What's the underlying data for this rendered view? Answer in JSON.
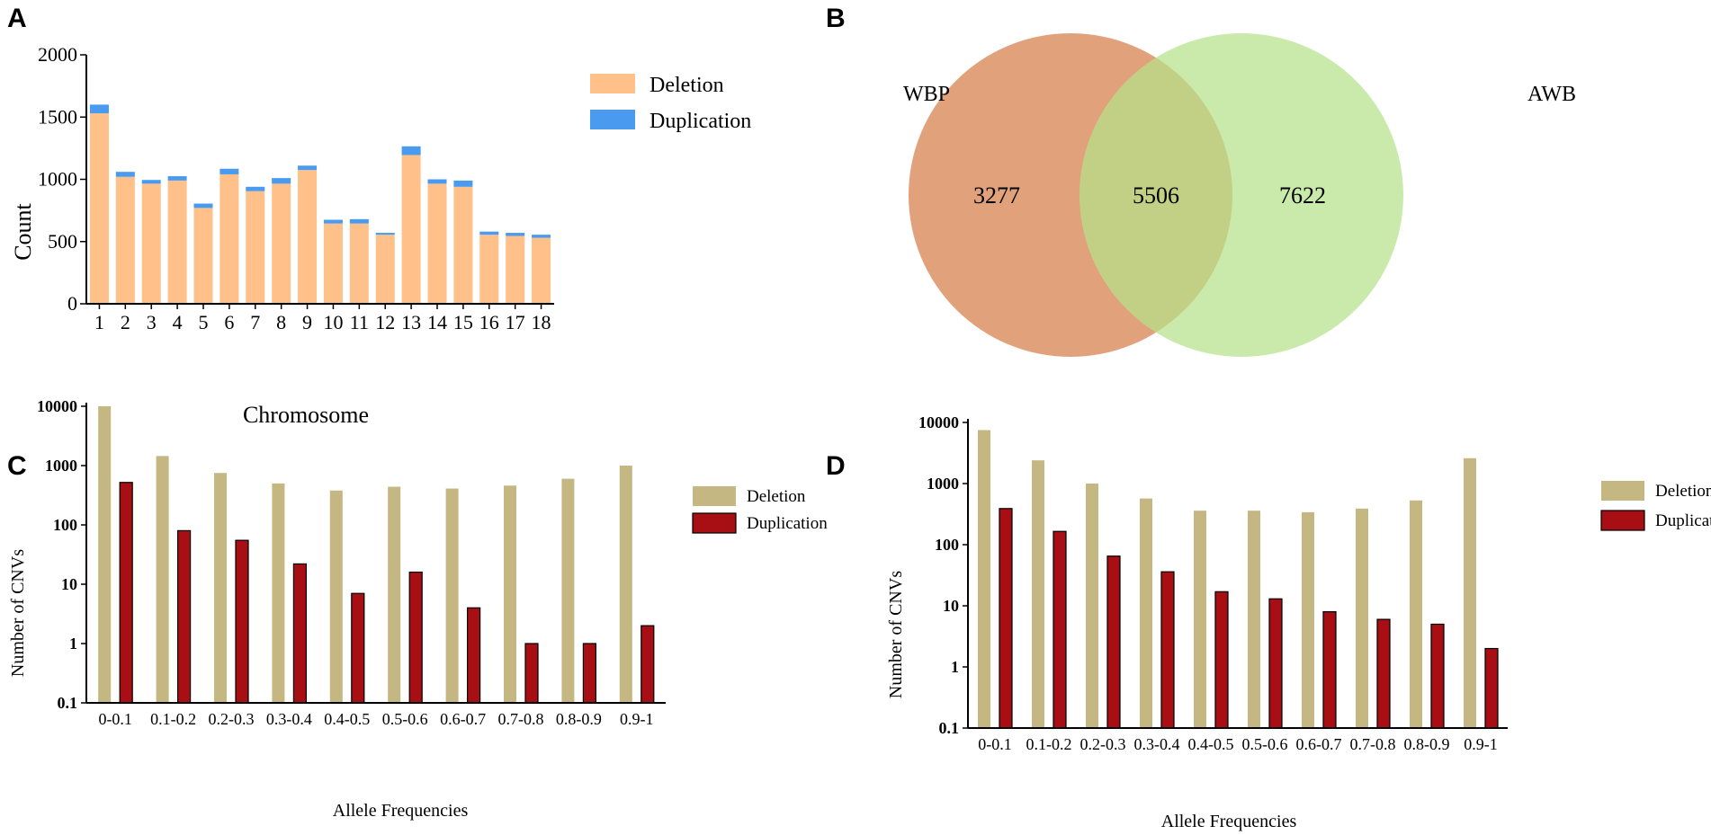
{
  "panels": {
    "a": "A",
    "b": "B",
    "c": "C",
    "d": "D"
  },
  "colors": {
    "deletion_a": "#FFC08A",
    "duplication_a": "#4A9AEF",
    "wbp": "#D9895A",
    "awb": "#B6E28A",
    "wbp_label": "#DDA07A",
    "awb_label": "#A8C68A",
    "deletion_cd": "#C4B782",
    "duplication_cd": "#A80F14"
  },
  "chart_data": [
    {
      "id": "A",
      "type": "bar",
      "stacked": true,
      "xlabel": "Chromosome",
      "ylabel": "Count",
      "ylim": [
        0,
        2000
      ],
      "yticks": [
        "0",
        "500",
        "1000",
        "1500",
        "2000"
      ],
      "categories": [
        "1",
        "2",
        "3",
        "4",
        "5",
        "6",
        "7",
        "8",
        "9",
        "10",
        "11",
        "12",
        "13",
        "14",
        "15",
        "16",
        "17",
        "18"
      ],
      "legend": [
        "Deletion",
        "Duplication"
      ],
      "legend_position": "top-right",
      "series": [
        {
          "name": "Deletion",
          "values": [
            1530,
            1020,
            965,
            990,
            770,
            1040,
            905,
            965,
            1075,
            645,
            645,
            555,
            1195,
            965,
            940,
            555,
            545,
            530
          ]
        },
        {
          "name": "Duplication",
          "values": [
            70,
            40,
            30,
            35,
            35,
            45,
            35,
            45,
            35,
            30,
            35,
            15,
            70,
            35,
            50,
            25,
            25,
            25
          ]
        }
      ]
    },
    {
      "id": "B",
      "type": "venn",
      "sets": [
        "WBP",
        "AWB"
      ],
      "values": {
        "wbp_only": "3277",
        "both": "5506",
        "awb_only": "7622"
      }
    },
    {
      "id": "C",
      "type": "bar",
      "yscale": "log",
      "xlabel": "Allele Frequencies",
      "ylabel": "Number of CNVs",
      "ylim": [
        0.1,
        10000
      ],
      "yticks": [
        "0.1",
        "1",
        "10",
        "100",
        "1000",
        "10000"
      ],
      "categories": [
        "0-0.1",
        "0.1-0.2",
        "0.2-0.3",
        "0.3-0.4",
        "0.4-0.5",
        "0.5-0.6",
        "0.6-0.7",
        "0.7-0.8",
        "0.8-0.9",
        "0.9-1"
      ],
      "legend": [
        "Deletion",
        "Duplication"
      ],
      "legend_position": "top-right",
      "series": [
        {
          "name": "Deletion",
          "values": [
            10000,
            1450,
            750,
            500,
            380,
            440,
            410,
            460,
            600,
            1000
          ]
        },
        {
          "name": "Duplication",
          "values": [
            520,
            80,
            55,
            22,
            7,
            16,
            4,
            1,
            1,
            2
          ]
        }
      ]
    },
    {
      "id": "D",
      "type": "bar",
      "yscale": "log",
      "xlabel": "Allele Frequencies",
      "ylabel": "Number of CNVs",
      "ylim": [
        0.1,
        10000
      ],
      "yticks": [
        "0.1",
        "1",
        "10",
        "100",
        "1000",
        "10000"
      ],
      "categories": [
        "0-0.1",
        "0.1-0.2",
        "0.2-0.3",
        "0.3-0.4",
        "0.4-0.5",
        "0.5-0.6",
        "0.6-0.7",
        "0.7-0.8",
        "0.8-0.9",
        "0.9-1"
      ],
      "legend": [
        "Deletion",
        "Duplication"
      ],
      "legend_position": "top-right",
      "series": [
        {
          "name": "Deletion",
          "values": [
            7500,
            2400,
            1000,
            570,
            360,
            360,
            340,
            390,
            530,
            2600
          ]
        },
        {
          "name": "Duplication",
          "values": [
            390,
            165,
            65,
            36,
            17,
            13,
            8,
            6,
            5,
            2
          ]
        }
      ]
    }
  ]
}
